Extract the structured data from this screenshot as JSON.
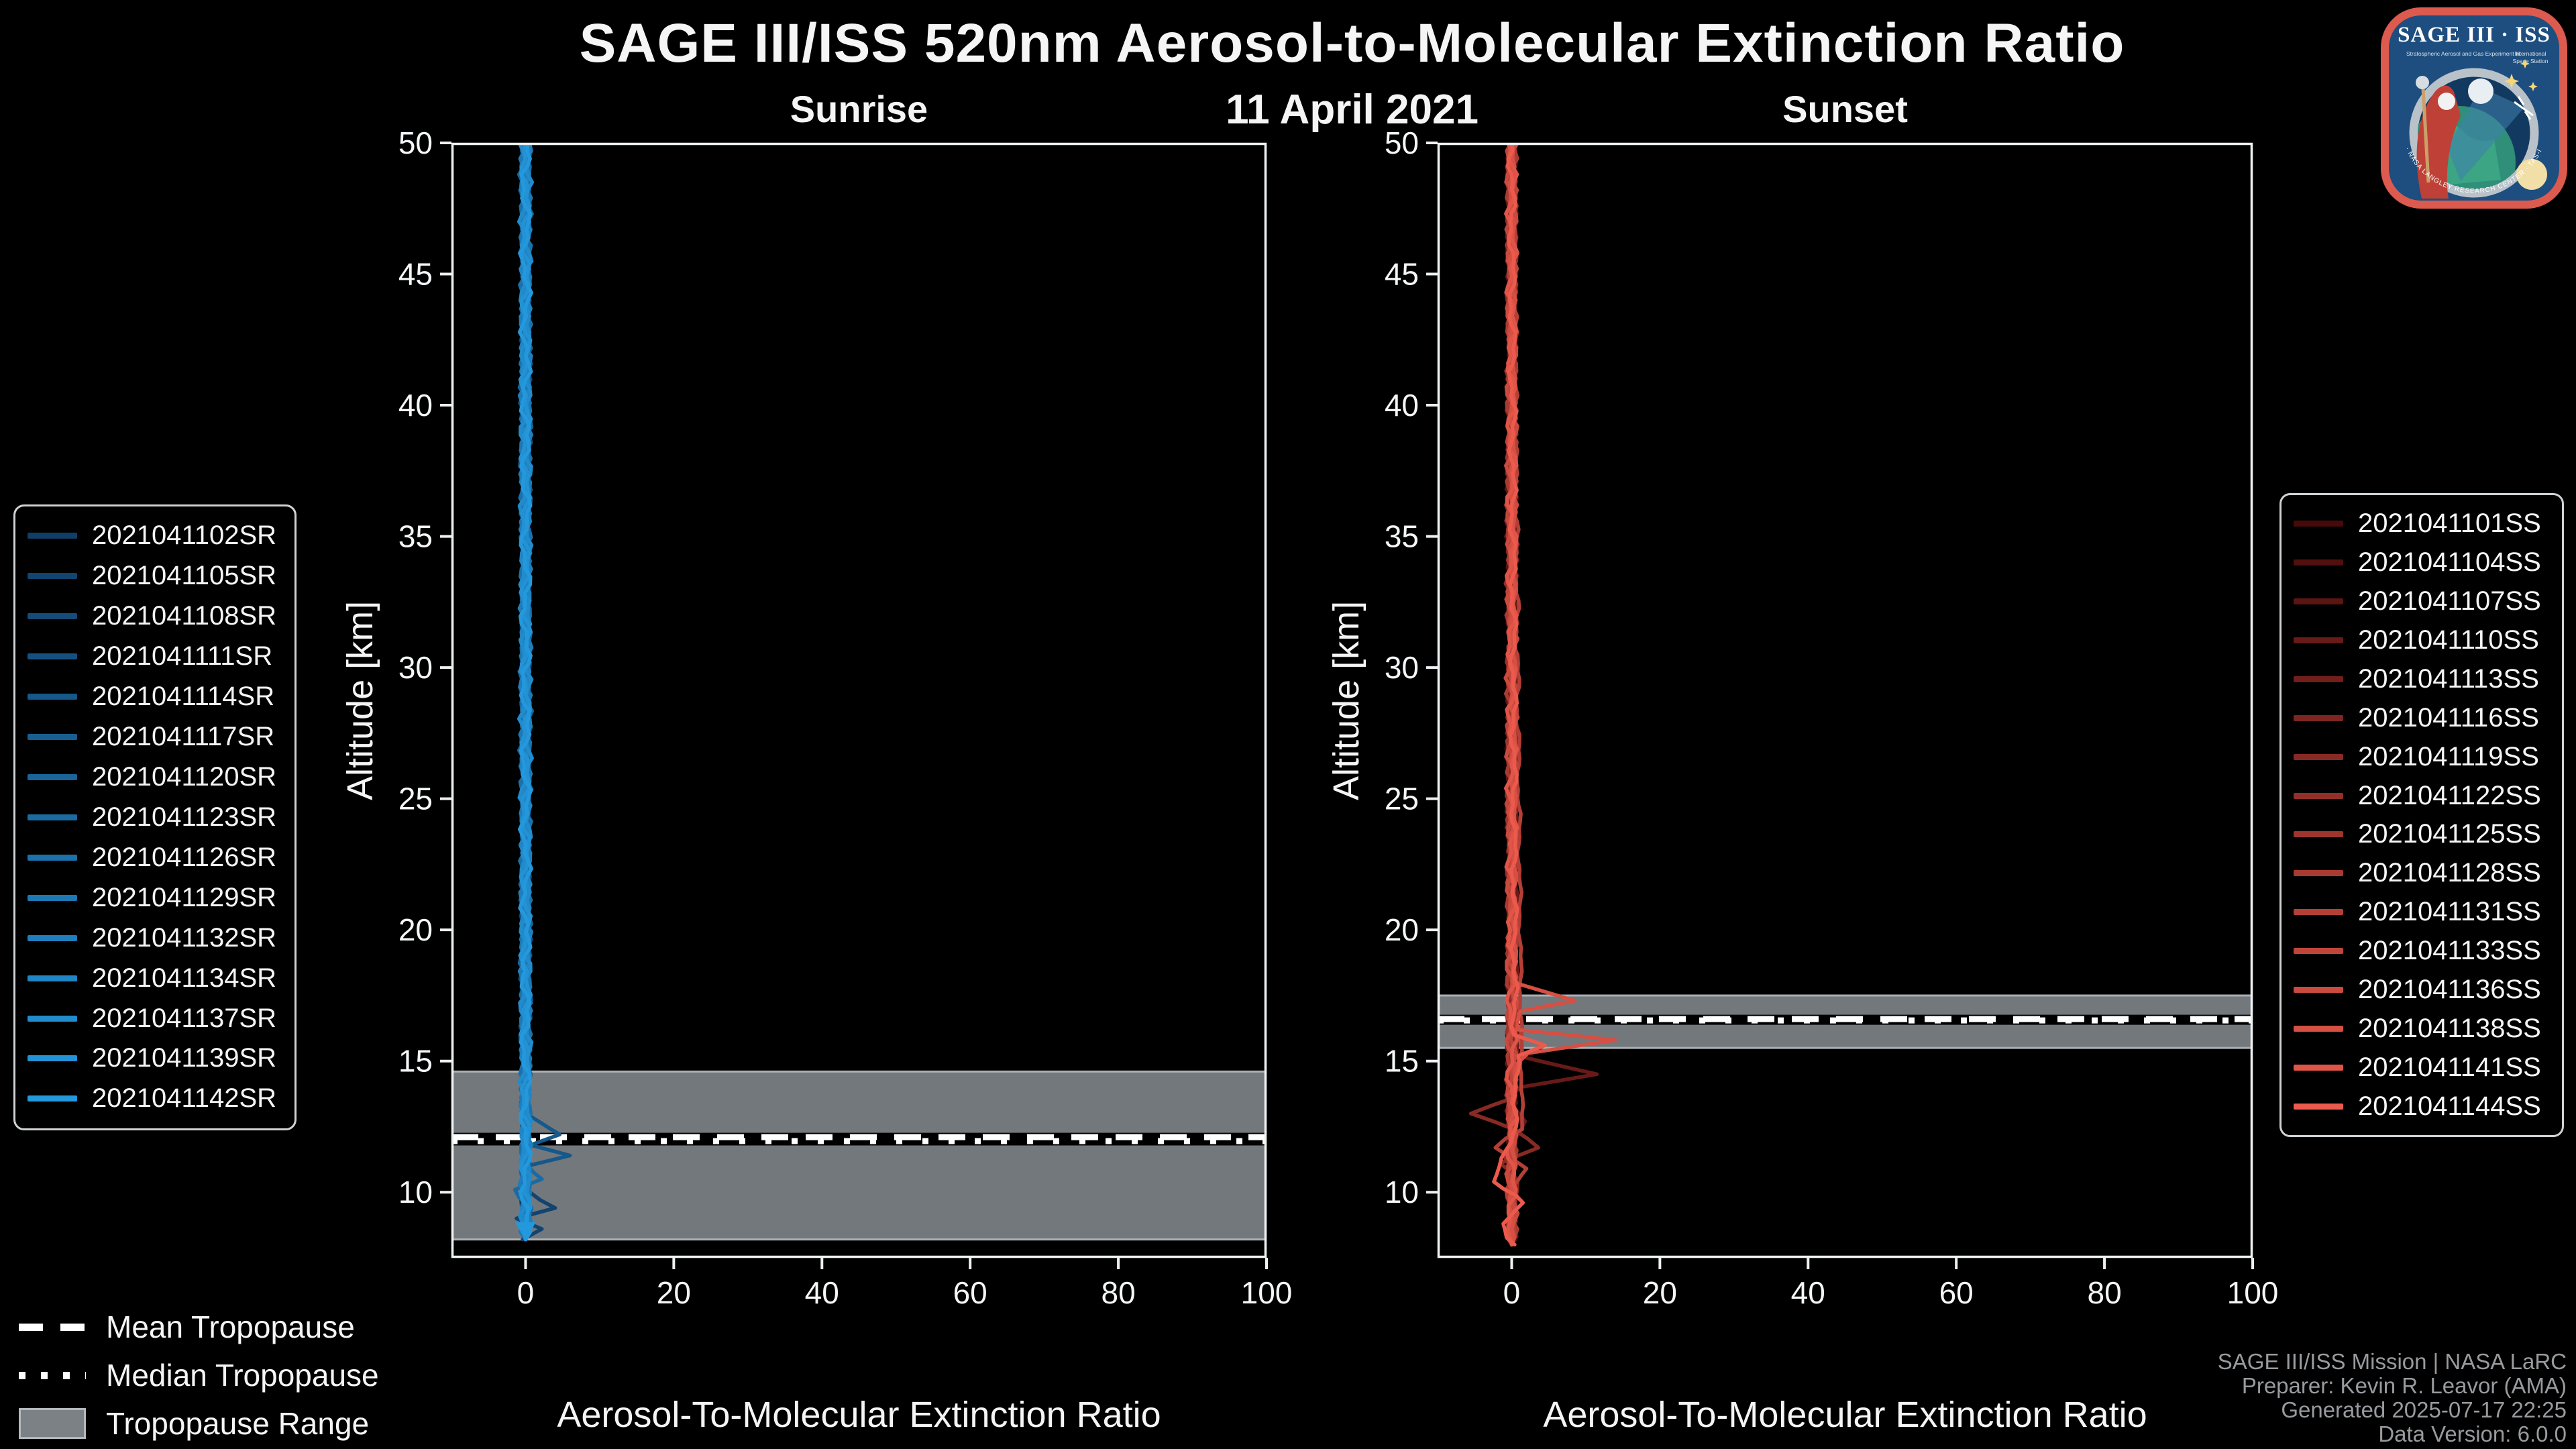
{
  "chart_data": {
    "type": "line",
    "title": "SAGE III/ISS 520nm Aerosol-to-Molecular Extinction Ratio",
    "subtitle": "11 April 2021",
    "xlabel": "Aerosol-To-Molecular Extinction Ratio",
    "ylabel": "Altitude [km]",
    "xlim": [
      -10,
      100
    ],
    "ylim": [
      7.5,
      50
    ],
    "xticks": [
      0,
      20,
      40,
      60,
      80,
      100
    ],
    "yticks": [
      10,
      15,
      20,
      25,
      30,
      35,
      40,
      45,
      50
    ],
    "grid": false,
    "legend_position": "outside-left-and-right",
    "panels": [
      {
        "name": "Sunrise",
        "tropopause": {
          "range": [
            8.2,
            14.6
          ],
          "mean": 12.1,
          "median": 11.95
        },
        "end_marker": {
          "x": 0,
          "alt": 8.55
        },
        "series": [
          {
            "label": "2021041102SR",
            "color": "#113e67",
            "noise": 0.7,
            "profile": [
              [
                50,
                0
              ],
              [
                8.2,
                0
              ]
            ]
          },
          {
            "label": "2021041105SR",
            "color": "#12446f",
            "noise": 0.6,
            "profile": [
              [
                50,
                0
              ],
              [
                10,
                0
              ],
              [
                9.4,
                4.0
              ],
              [
                9.0,
                -1.2
              ],
              [
                8.6,
                2.2
              ],
              [
                8.2,
                -0.4
              ]
            ]
          },
          {
            "label": "2021041108SR",
            "color": "#144b78",
            "noise": 0.75,
            "profile": [
              [
                50,
                0
              ],
              [
                8.2,
                0
              ]
            ]
          },
          {
            "label": "2021041111SR",
            "color": "#155180",
            "noise": 0.8,
            "profile": [
              [
                50,
                0
              ],
              [
                8.2,
                0
              ]
            ]
          },
          {
            "label": "2021041114SR",
            "color": "#165889",
            "noise": 0.55,
            "profile": [
              [
                50,
                0
              ],
              [
                13,
                0
              ],
              [
                12.2,
                4.6
              ],
              [
                11.8,
                0.8
              ],
              [
                11.4,
                6.0
              ],
              [
                11.0,
                0.2
              ],
              [
                10.2,
                -0.8
              ],
              [
                9.6,
                0.3
              ],
              [
                8.2,
                0
              ]
            ]
          },
          {
            "label": "2021041117SR",
            "color": "#185e91",
            "noise": 0.7,
            "profile": [
              [
                50,
                0
              ],
              [
                8.2,
                0
              ]
            ]
          },
          {
            "label": "2021041120SR",
            "color": "#19659a",
            "noise": 0.9,
            "profile": [
              [
                50,
                0
              ],
              [
                8.2,
                0
              ]
            ]
          },
          {
            "label": "2021041123SR",
            "color": "#1b6ba2",
            "noise": 0.6,
            "profile": [
              [
                50,
                0
              ],
              [
                11,
                0
              ],
              [
                10.5,
                2.2
              ],
              [
                10.1,
                -1.4
              ],
              [
                9.5,
                0.6
              ],
              [
                8.2,
                0
              ]
            ]
          },
          {
            "label": "2021041126SR",
            "color": "#1c71aa",
            "noise": 0.8,
            "profile": [
              [
                50,
                0
              ],
              [
                8.2,
                0
              ]
            ]
          },
          {
            "label": "2021041129SR",
            "color": "#1d78b3",
            "noise": 0.75,
            "profile": [
              [
                50,
                0
              ],
              [
                8.2,
                0
              ]
            ]
          },
          {
            "label": "2021041132SR",
            "color": "#1f7ebb",
            "noise": 0.85,
            "profile": [
              [
                50,
                0
              ],
              [
                8.2,
                0
              ]
            ]
          },
          {
            "label": "2021041134SR",
            "color": "#2085c4",
            "noise": 0.7,
            "profile": [
              [
                50,
                0
              ],
              [
                8.2,
                0
              ]
            ]
          },
          {
            "label": "2021041137SR",
            "color": "#218bcc",
            "noise": 0.9,
            "profile": [
              [
                50,
                0
              ],
              [
                8.2,
                0
              ]
            ]
          },
          {
            "label": "2021041139SR",
            "color": "#2392d5",
            "noise": 0.75,
            "profile": [
              [
                50,
                0
              ],
              [
                8.2,
                0
              ]
            ]
          },
          {
            "label": "2021041142SR",
            "color": "#2498dd",
            "noise": 0.8,
            "profile": [
              [
                50,
                0
              ],
              [
                8.2,
                0
              ]
            ]
          }
        ]
      },
      {
        "name": "Sunset",
        "tropopause": {
          "range": [
            15.5,
            17.5
          ],
          "mean": 16.6,
          "median": 16.55
        },
        "series": [
          {
            "label": "2021041101SS",
            "color": "#460a0a",
            "noise": 0.7,
            "profile": [
              [
                50,
                0
              ],
              [
                8,
                0
              ]
            ]
          },
          {
            "label": "2021041104SS",
            "color": "#510f0e",
            "noise": 0.8,
            "profile": [
              [
                50,
                0
              ],
              [
                8,
                0
              ]
            ]
          },
          {
            "label": "2021041107SS",
            "color": "#5c1513",
            "noise": 0.75,
            "profile": [
              [
                50,
                0
              ],
              [
                8,
                0
              ]
            ]
          },
          {
            "label": "2021041110SS",
            "color": "#671a17",
            "noise": 0.5,
            "profile": [
              [
                50,
                0
              ],
              [
                15.2,
                0.6
              ],
              [
                14.5,
                11.5
              ],
              [
                14.0,
                1.2
              ],
              [
                13.4,
                -0.6
              ],
              [
                12.7,
                1.8
              ],
              [
                12.0,
                0.4
              ],
              [
                8,
                0
              ]
            ]
          },
          {
            "label": "2021041113SS",
            "color": "#721f1c",
            "noise": 0.8,
            "profile": [
              [
                50,
                0
              ],
              [
                8,
                0
              ]
            ]
          },
          {
            "label": "2021041116SS",
            "color": "#7d2520",
            "noise": 0.7,
            "profile": [
              [
                50,
                0
              ],
              [
                8,
                0
              ]
            ]
          },
          {
            "label": "2021041119SS",
            "color": "#882a24",
            "noise": 0.55,
            "profile": [
              [
                50,
                0
              ],
              [
                13.6,
                0
              ],
              [
                13.0,
                -5.5
              ],
              [
                12.4,
                0.6
              ],
              [
                11.7,
                3.6
              ],
              [
                11.1,
                -1.6
              ],
              [
                10.4,
                0.8
              ],
              [
                8,
                0
              ]
            ]
          },
          {
            "label": "2021041122SS",
            "color": "#932f29",
            "noise": 0.85,
            "profile": [
              [
                50,
                0
              ],
              [
                8,
                0
              ]
            ]
          },
          {
            "label": "2021041125SS",
            "color": "#9e352d",
            "noise": 0.7,
            "profile": [
              [
                50,
                0
              ],
              [
                8,
                0
              ]
            ]
          },
          {
            "label": "2021041128SS",
            "color": "#a93a32",
            "noise": 0.8,
            "profile": [
              [
                50,
                0
              ],
              [
                8,
                0
              ]
            ]
          },
          {
            "label": "2021041131SS",
            "color": "#b43f36",
            "noise": 0.6,
            "profile": [
              [
                50,
                0
              ],
              [
                12.4,
                1.4
              ],
              [
                11.7,
                -2.2
              ],
              [
                10.9,
                2.0
              ],
              [
                10.1,
                -0.8
              ],
              [
                9.0,
                0.6
              ],
              [
                8,
                0
              ]
            ]
          },
          {
            "label": "2021041133SS",
            "color": "#bf453a",
            "noise": 0.75,
            "profile": [
              [
                50,
                0
              ],
              [
                8,
                0
              ]
            ]
          },
          {
            "label": "2021041136SS",
            "color": "#ca4a3f",
            "noise": 0.85,
            "profile": [
              [
                50,
                0
              ],
              [
                8,
                0
              ]
            ]
          },
          {
            "label": "2021041138SS",
            "color": "#d54f43",
            "noise": 0.5,
            "profile": [
              [
                50,
                0
              ],
              [
                18.0,
                0.3
              ],
              [
                17.3,
                8.5
              ],
              [
                16.9,
                1.0
              ],
              [
                16.2,
                0.5
              ],
              [
                15.8,
                14.0
              ],
              [
                15.3,
                2.2
              ],
              [
                14.9,
                0.8
              ],
              [
                14.0,
                0.2
              ],
              [
                8,
                0
              ]
            ]
          },
          {
            "label": "2021041141SS",
            "color": "#e05548",
            "noise": 0.8,
            "profile": [
              [
                50,
                0
              ],
              [
                8,
                0
              ]
            ]
          },
          {
            "label": "2021041144SS",
            "color": "#eb5a4c",
            "noise": 0.6,
            "profile": [
              [
                50,
                0
              ],
              [
                16.0,
                0.4
              ],
              [
                15.6,
                4.5
              ],
              [
                15.2,
                0.8
              ],
              [
                12.5,
                0.4
              ],
              [
                10.4,
                -2.4
              ],
              [
                9.6,
                1.4
              ],
              [
                8.8,
                -1.2
              ],
              [
                8,
                0.4
              ]
            ]
          }
        ]
      }
    ]
  },
  "overlay_legend": {
    "mean": "Mean Tropopause",
    "median": "Median Tropopause",
    "range": "Tropopause Range"
  },
  "attribution": {
    "lines": [
      "SAGE III/ISS Mission | NASA LaRC",
      "Preparer: Kevin R. Leavor (AMA)",
      "Generated 2025-07-17 22:25",
      "Data Version: 6.0.0"
    ]
  },
  "logo": {
    "title": "SAGE III · ISS",
    "sub1": "Stratospheric Aerosol and Gas Experiment III",
    "sub2a": "International",
    "sub2b": "Space Station",
    "ring_text": "BALL · NASA LANGLEY RESEARCH CENTER · TAS-I · ESA"
  },
  "colors": {
    "background": "#000000",
    "axis": "#eef1f2",
    "tick_text": "#f4f6f7",
    "tropopause_band": "#7c8186",
    "tropopause_band_edge": "#aab0b5",
    "tropopause_line": "#ffffff",
    "attribution_text": "#989b9e",
    "legend_border": "#cfd2d4",
    "logo_border": "#dd5a4e",
    "logo_bg": "#1d4e7f"
  }
}
